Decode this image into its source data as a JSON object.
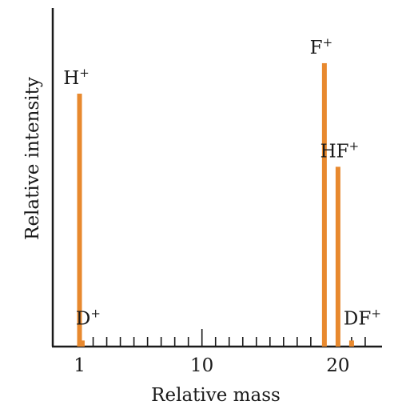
{
  "chart_data": {
    "type": "bar",
    "title": "",
    "xlabel": "Relative mass",
    "ylabel": "Relative intensity",
    "xlim": [
      0,
      22.2
    ],
    "ylim": [
      0,
      100
    ],
    "x_ticks": [
      1,
      10,
      20
    ],
    "x_tick_labels": [
      "1",
      "10",
      "20"
    ],
    "minor_tick_step": 1,
    "grid": false,
    "bar_color": "#E8892E",
    "peaks": [
      {
        "ion": "H",
        "charge": "+",
        "x": 1,
        "value": 83
      },
      {
        "ion": "D",
        "charge": "+",
        "x": 1.2,
        "value": 2
      },
      {
        "ion": "F",
        "charge": "+",
        "x": 19,
        "value": 93
      },
      {
        "ion": "HF",
        "charge": "+",
        "x": 20,
        "value": 59
      },
      {
        "ion": "DF",
        "charge": "+",
        "x": 21,
        "value": 2
      }
    ]
  }
}
